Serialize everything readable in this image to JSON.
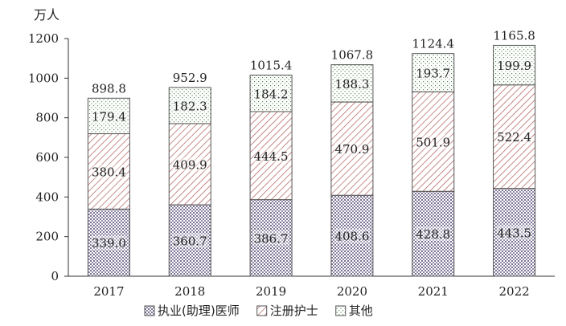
{
  "chart_data": {
    "type": "bar",
    "stacked": true,
    "ylabel": "万人",
    "ylim": [
      0,
      1200
    ],
    "yticks": [
      "0",
      "200",
      "400",
      "600",
      "800",
      "1000",
      "1200"
    ],
    "categories": [
      "2017",
      "2018",
      "2019",
      "2020",
      "2021",
      "2022"
    ],
    "totals": [
      "898.8",
      "952.9",
      "1015.4",
      "1067.8",
      "1124.4",
      "1165.8"
    ],
    "series": [
      {
        "name": "执业(助理)医师",
        "values": [
          339.0,
          360.7,
          386.7,
          408.6,
          428.8,
          443.5
        ],
        "labels": [
          "339.0",
          "360.7",
          "386.7",
          "408.6",
          "428.8",
          "443.5"
        ],
        "pattern": "dots"
      },
      {
        "name": "注册护士",
        "values": [
          380.4,
          409.9,
          444.5,
          470.9,
          501.9,
          522.4
        ],
        "labels": [
          "380.4",
          "409.9",
          "444.5",
          "470.9",
          "501.9",
          "522.4"
        ],
        "pattern": "diagonal"
      },
      {
        "name": "其他",
        "values": [
          179.4,
          182.3,
          184.2,
          188.3,
          193.7,
          199.9
        ],
        "labels": [
          "179.4",
          "182.3",
          "184.2",
          "188.3",
          "193.7",
          "199.9"
        ],
        "pattern": "sparse-dots"
      }
    ],
    "grid": false,
    "legend_position": "bottom",
    "colors": {
      "bar_outline": "#555555",
      "axis": "#333333",
      "text": "#222222",
      "hatch": "#a04a4a",
      "dots": "#6a6a8a"
    }
  }
}
